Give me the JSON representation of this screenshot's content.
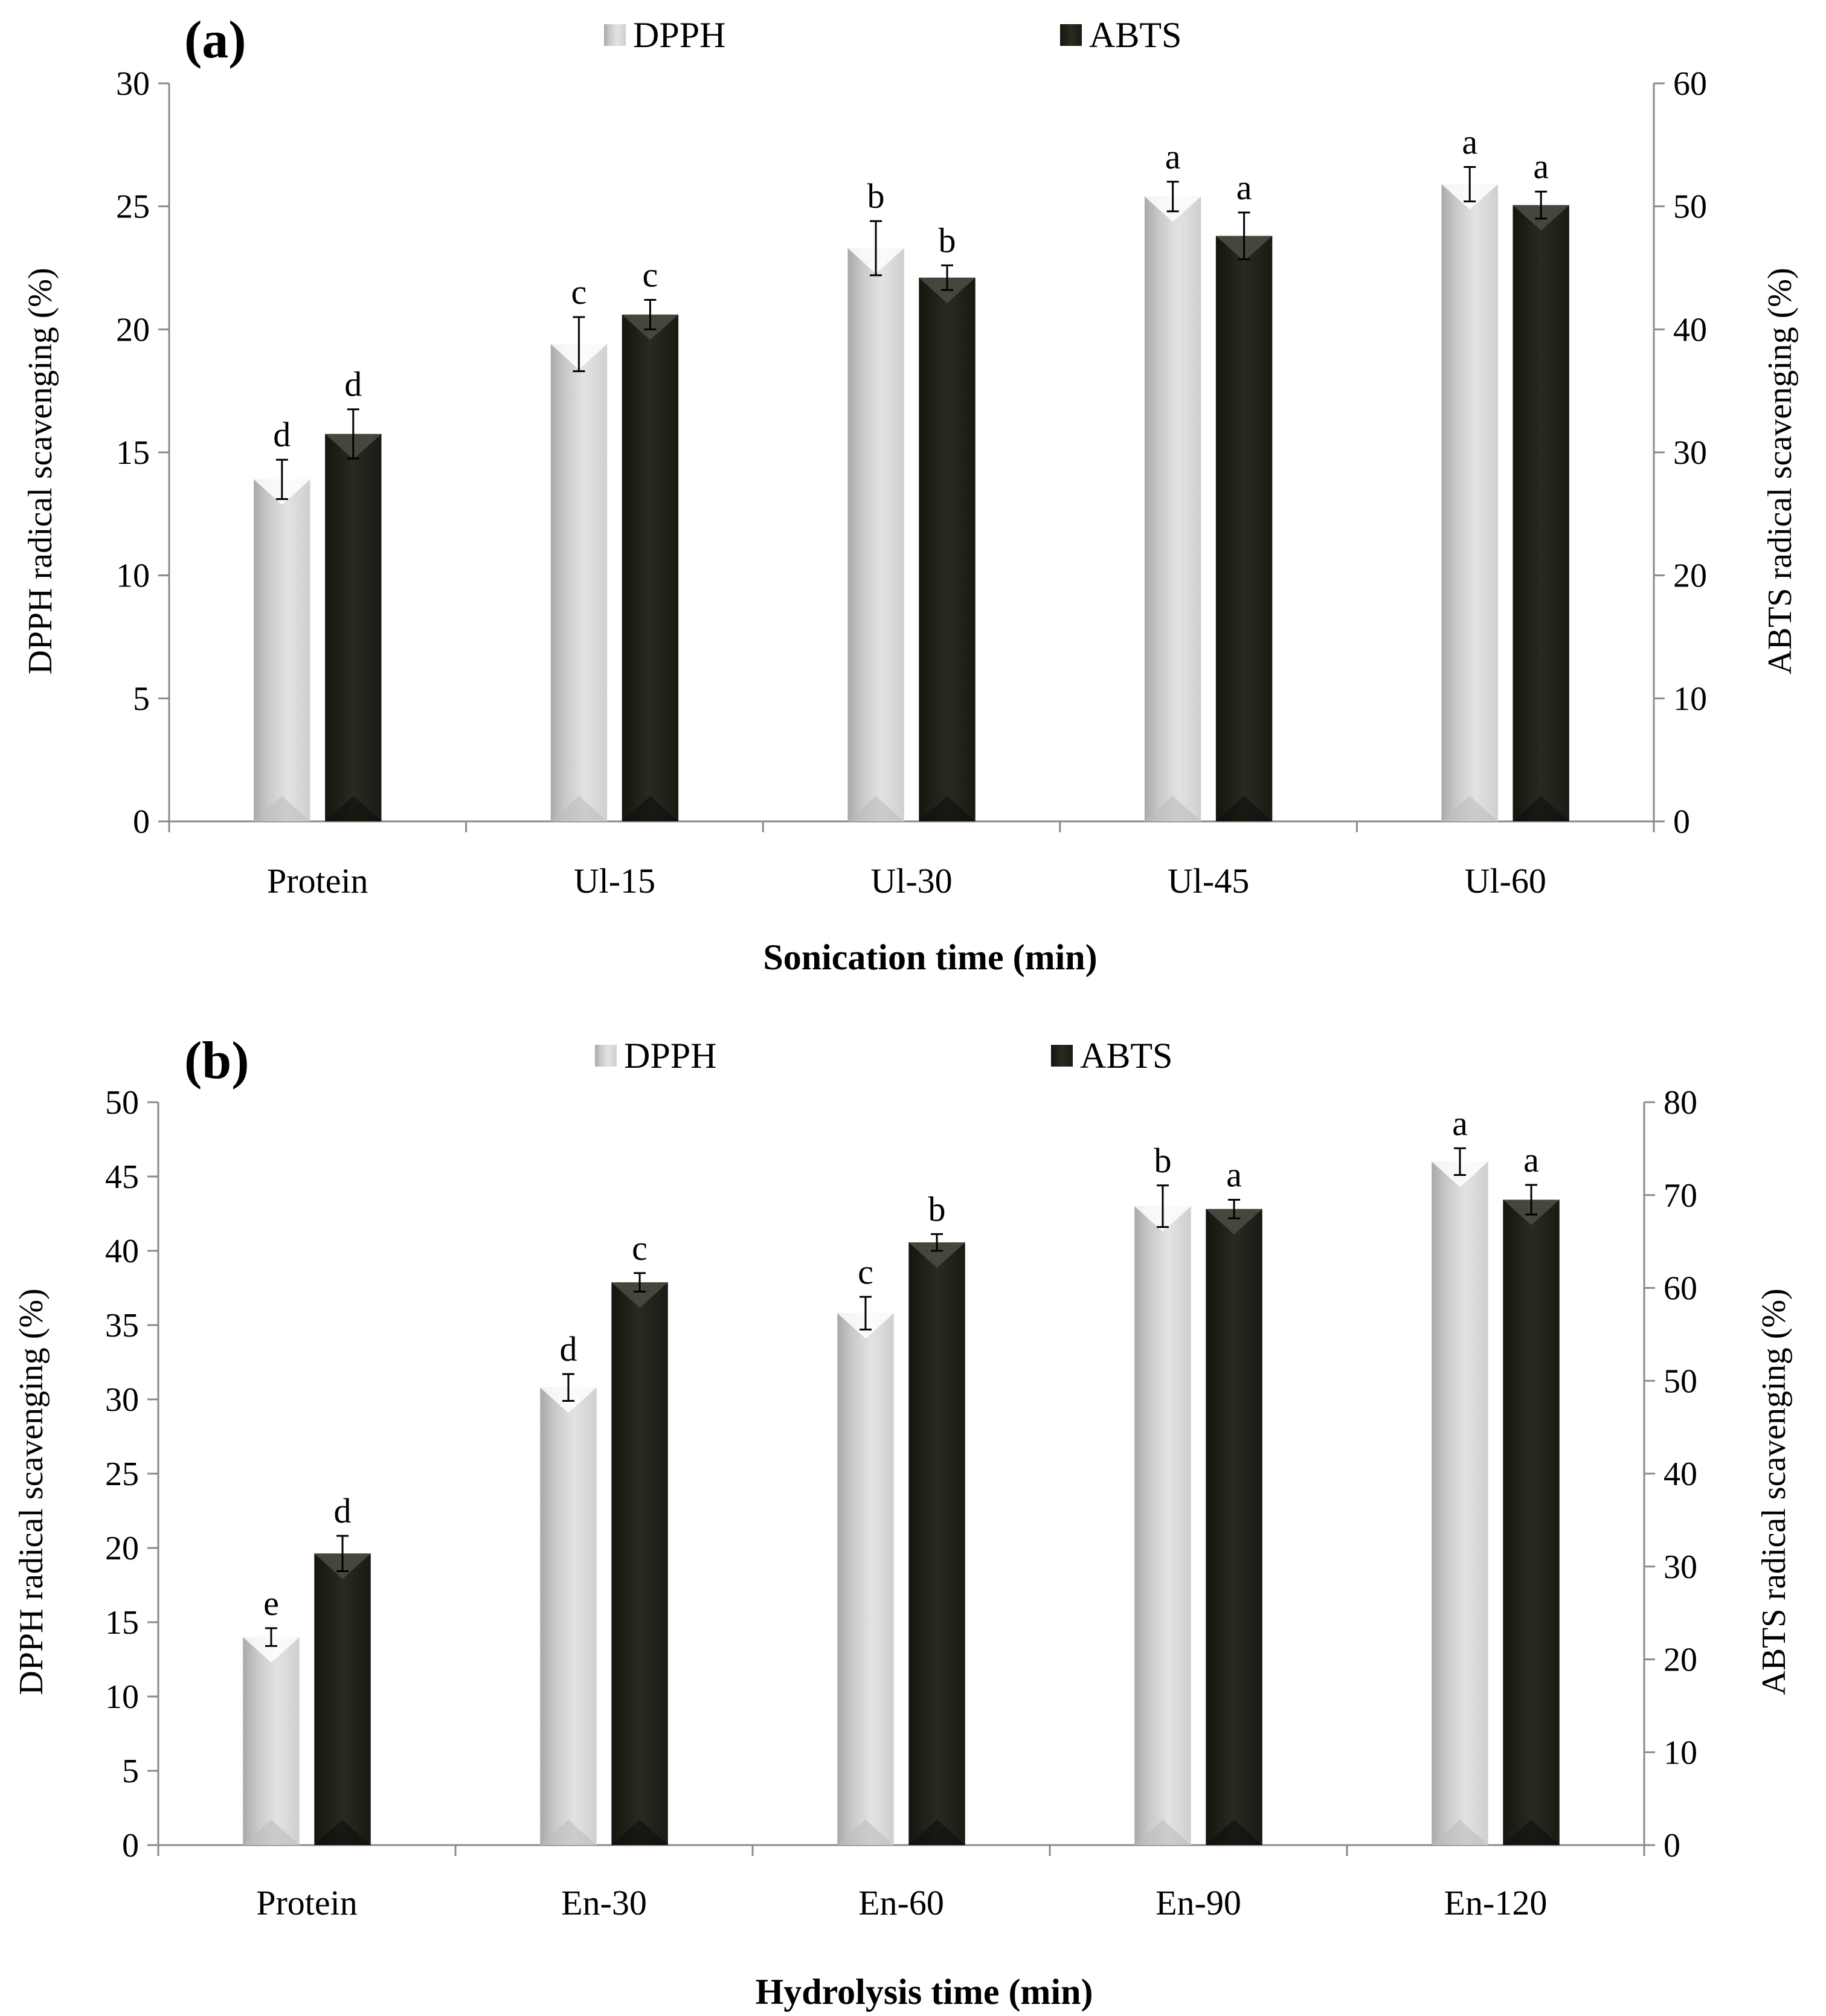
{
  "colors": {
    "dpph": "#d9d9d9",
    "abts": "#22211a",
    "axis": "#8a8a8a"
  },
  "chart_data": [
    {
      "type": "bar",
      "panel_label": "(a)",
      "legend": [
        "DPPH",
        "ABTS"
      ],
      "categories": [
        "Protein",
        "Ul-15",
        "Ul-30",
        "Ul-45",
        "Ul-60"
      ],
      "xlabel": "Sonication time (min)",
      "ylabel": "DPPH radical scavenging (%)",
      "y2label": "ABTS radical scavenging (%)",
      "ylim": [
        0,
        30
      ],
      "yticks": [
        "0",
        "5",
        "10",
        "15",
        "20",
        "25",
        "30"
      ],
      "y2lim": [
        0,
        60
      ],
      "y2ticks": [
        "0",
        "10",
        "20",
        "30",
        "40",
        "50",
        "60"
      ],
      "series": [
        {
          "name": "DPPH",
          "axis": "left",
          "values": [
            13.9,
            19.4,
            23.3,
            25.4,
            25.9
          ],
          "errors": [
            0.8,
            1.1,
            1.1,
            0.6,
            0.7
          ],
          "letters": [
            "d",
            "c",
            "b",
            "a",
            "a"
          ]
        },
        {
          "name": "ABTS",
          "axis": "right",
          "values": [
            31.5,
            41.2,
            44.2,
            47.6,
            50.1
          ],
          "errors": [
            2.0,
            1.2,
            1.0,
            1.9,
            1.1
          ],
          "letters": [
            "d",
            "c",
            "b",
            "a",
            "a"
          ]
        }
      ]
    },
    {
      "type": "bar",
      "panel_label": "(b)",
      "legend": [
        "DPPH",
        "ABTS"
      ],
      "categories": [
        "Protein",
        "En-30",
        "En-60",
        "En-90",
        "En-120"
      ],
      "xlabel": "Hydrolysis time (min)",
      "ylabel": "DPPH radical scavenging (%)",
      "y2label": "ABTS radical scavenging (%)",
      "ylim": [
        0,
        50
      ],
      "yticks": [
        "0",
        "5",
        "10",
        "15",
        "20",
        "25",
        "30",
        "35",
        "40",
        "45",
        "50"
      ],
      "y2lim": [
        0,
        80
      ],
      "y2ticks": [
        "0",
        "10",
        "20",
        "30",
        "40",
        "50",
        "60",
        "70",
        "80"
      ],
      "series": [
        {
          "name": "DPPH",
          "axis": "left",
          "values": [
            14.0,
            30.8,
            35.8,
            43.0,
            46.0
          ],
          "errors": [
            0.6,
            0.9,
            1.1,
            1.4,
            0.9
          ],
          "letters": [
            "e",
            "d",
            "c",
            "b",
            "a"
          ]
        },
        {
          "name": "ABTS",
          "axis": "right",
          "values": [
            31.4,
            60.6,
            64.9,
            68.5,
            69.5
          ],
          "errors": [
            1.9,
            1.0,
            0.9,
            1.0,
            1.6
          ],
          "letters": [
            "d",
            "c",
            "b",
            "a",
            "a"
          ]
        }
      ]
    }
  ]
}
